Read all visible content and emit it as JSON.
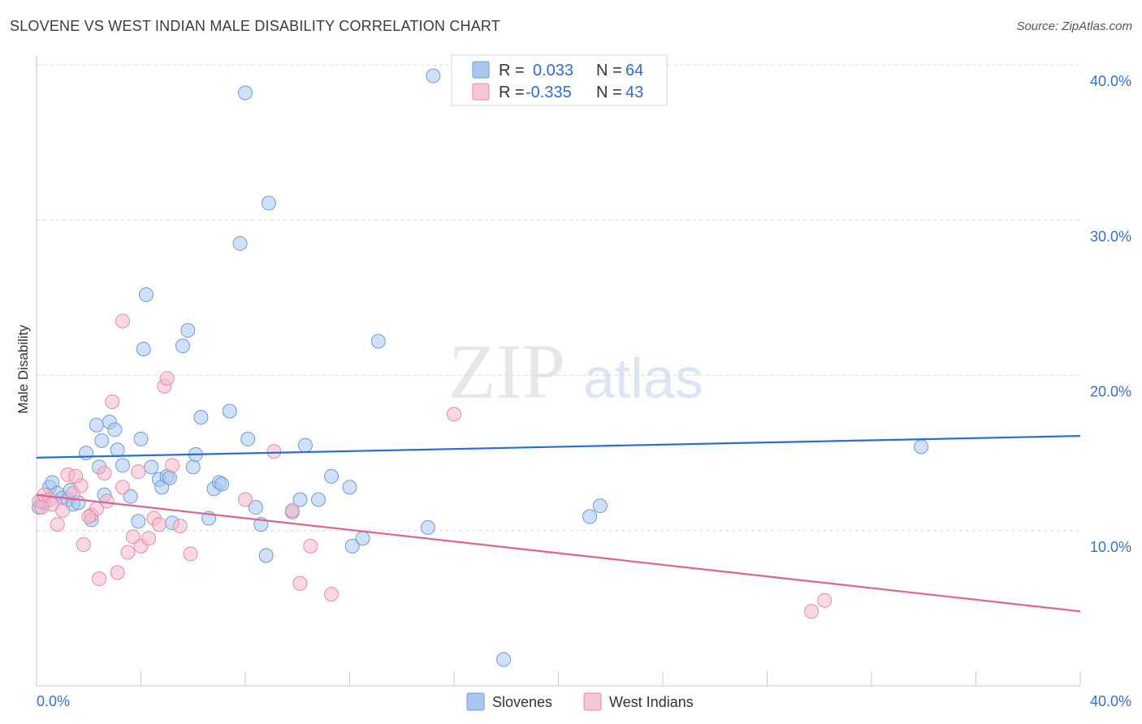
{
  "title": "SLOVENE VS WEST INDIAN MALE DISABILITY CORRELATION CHART",
  "source": "Source: ZipAtlas.com",
  "watermark": {
    "zip": "ZIP",
    "atlas": "atlas"
  },
  "colors": {
    "blue_fill": "#a9c6ee",
    "blue_stroke": "#6f9bd8",
    "blue_line": "#2a6fcf",
    "pink_fill": "#f5b8cb",
    "pink_stroke": "#e88aa8",
    "pink_line": "#e0628f",
    "grid": "#d9d9d9",
    "axis_text": "#3a6fc4"
  },
  "legend_top": {
    "rows": [
      {
        "r_label": "R = ",
        "r_value": "0.033",
        "n_label": "N = ",
        "n_value": "64"
      },
      {
        "r_label": "R = ",
        "r_value": "-0.335",
        "n_label": "N = ",
        "n_value": "43"
      }
    ]
  },
  "legend_bottom": [
    "Slovenes",
    "West Indians"
  ],
  "chart_data": {
    "type": "scatter",
    "title": "SLOVENE VS WEST INDIAN MALE DISABILITY CORRELATION CHART",
    "xlabel": "",
    "ylabel": "Male Disability",
    "xlim": [
      0,
      40
    ],
    "ylim": [
      0,
      40
    ],
    "x_tick_labels": [
      "0.0%",
      "40.0%"
    ],
    "y_tick_labels": [
      "10.0%",
      "20.0%",
      "30.0%",
      "40.0%"
    ],
    "y_ticks": [
      10,
      20,
      30,
      40
    ],
    "grid": true,
    "series": [
      {
        "name": "Slovenes",
        "r": 0.033,
        "n": 64,
        "trend": {
          "x": [
            0,
            40
          ],
          "y": [
            14.7,
            16.1
          ]
        },
        "points": [
          [
            0.1,
            11.5
          ],
          [
            0.3,
            11.8
          ],
          [
            0.5,
            12.8
          ],
          [
            0.6,
            13.1
          ],
          [
            0.8,
            12.4
          ],
          [
            1.0,
            12.1
          ],
          [
            1.2,
            12.0
          ],
          [
            1.4,
            11.7
          ],
          [
            1.6,
            11.8
          ],
          [
            1.9,
            15.0
          ],
          [
            2.1,
            10.7
          ],
          [
            2.3,
            16.8
          ],
          [
            2.5,
            15.8
          ],
          [
            2.6,
            12.3
          ],
          [
            2.8,
            17.0
          ],
          [
            3.0,
            16.5
          ],
          [
            3.1,
            15.2
          ],
          [
            3.3,
            14.2
          ],
          [
            3.6,
            12.2
          ],
          [
            3.9,
            10.6
          ],
          [
            4.0,
            15.9
          ],
          [
            4.1,
            21.7
          ],
          [
            4.2,
            25.2
          ],
          [
            4.4,
            14.1
          ],
          [
            4.7,
            13.3
          ],
          [
            4.8,
            12.8
          ],
          [
            5.0,
            13.5
          ],
          [
            5.1,
            13.4
          ],
          [
            5.2,
            10.5
          ],
          [
            5.6,
            21.9
          ],
          [
            5.8,
            22.9
          ],
          [
            6.0,
            14.1
          ],
          [
            6.1,
            14.9
          ],
          [
            6.3,
            17.3
          ],
          [
            6.6,
            10.8
          ],
          [
            6.8,
            12.7
          ],
          [
            7.0,
            13.1
          ],
          [
            7.1,
            13.0
          ],
          [
            7.4,
            17.7
          ],
          [
            7.8,
            28.5
          ],
          [
            8.0,
            38.2
          ],
          [
            8.1,
            15.9
          ],
          [
            8.4,
            11.5
          ],
          [
            8.6,
            10.4
          ],
          [
            8.8,
            8.4
          ],
          [
            8.9,
            31.1
          ],
          [
            9.8,
            11.2
          ],
          [
            10.1,
            12.0
          ],
          [
            10.3,
            15.5
          ],
          [
            10.8,
            12.0
          ],
          [
            11.3,
            13.5
          ],
          [
            12.0,
            12.8
          ],
          [
            12.1,
            9.0
          ],
          [
            12.5,
            9.5
          ],
          [
            13.1,
            22.2
          ],
          [
            15.0,
            10.2
          ],
          [
            15.2,
            39.3
          ],
          [
            17.9,
            1.7
          ],
          [
            21.2,
            10.9
          ],
          [
            21.6,
            11.6
          ],
          [
            33.9,
            15.4
          ],
          [
            0.2,
            11.9
          ],
          [
            1.3,
            12.6
          ],
          [
            2.4,
            14.1
          ]
        ]
      },
      {
        "name": "West Indians",
        "r": -0.335,
        "n": 43,
        "trend": {
          "x": [
            0,
            40
          ],
          "y": [
            12.3,
            4.8
          ]
        },
        "points": [
          [
            0.1,
            11.9
          ],
          [
            0.3,
            12.3
          ],
          [
            0.5,
            12.0
          ],
          [
            0.6,
            11.7
          ],
          [
            0.8,
            10.4
          ],
          [
            1.0,
            11.3
          ],
          [
            1.2,
            13.6
          ],
          [
            1.4,
            12.4
          ],
          [
            1.7,
            12.9
          ],
          [
            1.8,
            9.1
          ],
          [
            2.1,
            11.0
          ],
          [
            2.3,
            11.4
          ],
          [
            2.4,
            6.9
          ],
          [
            2.6,
            13.7
          ],
          [
            2.7,
            11.9
          ],
          [
            2.9,
            18.3
          ],
          [
            3.1,
            7.3
          ],
          [
            3.3,
            23.5
          ],
          [
            3.5,
            8.6
          ],
          [
            3.7,
            9.6
          ],
          [
            3.9,
            13.8
          ],
          [
            4.0,
            9.0
          ],
          [
            4.3,
            9.5
          ],
          [
            4.5,
            10.8
          ],
          [
            4.7,
            10.4
          ],
          [
            4.9,
            19.3
          ],
          [
            5.0,
            19.8
          ],
          [
            5.2,
            14.2
          ],
          [
            5.5,
            10.3
          ],
          [
            5.9,
            8.5
          ],
          [
            8.0,
            12.0
          ],
          [
            9.1,
            15.1
          ],
          [
            9.8,
            11.3
          ],
          [
            10.1,
            6.6
          ],
          [
            10.5,
            9.0
          ],
          [
            11.3,
            5.9
          ],
          [
            16.0,
            17.5
          ],
          [
            29.7,
            4.8
          ],
          [
            30.2,
            5.5
          ],
          [
            0.2,
            11.5
          ],
          [
            1.5,
            13.5
          ],
          [
            2.0,
            10.9
          ],
          [
            3.3,
            12.8
          ]
        ]
      }
    ]
  }
}
